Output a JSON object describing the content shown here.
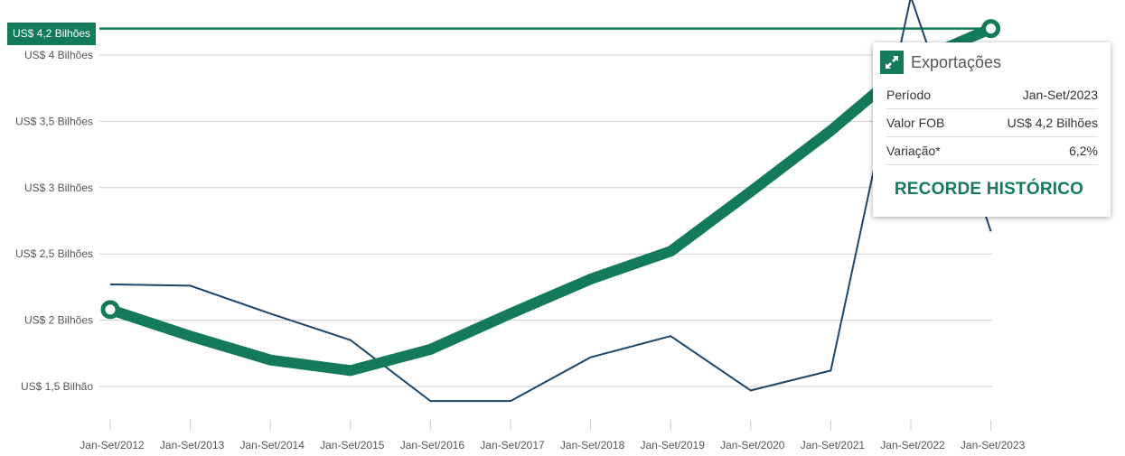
{
  "chart_data": {
    "type": "line",
    "title": "",
    "xlabel": "",
    "ylabel": "",
    "categories": [
      "Jan-Set/2012",
      "Jan-Set/2013",
      "Jan-Set/2014",
      "Jan-Set/2015",
      "Jan-Set/2016",
      "Jan-Set/2017",
      "Jan-Set/2018",
      "Jan-Set/2019",
      "Jan-Set/2020",
      "Jan-Set/2021",
      "Jan-Set/2022",
      "Jan-Set/2023"
    ],
    "yticks": [
      1.5,
      2,
      2.5,
      3,
      3.5,
      4
    ],
    "ytick_labels": [
      "US$ 1,5 Bilhão",
      "US$ 2 Bilhões",
      "US$ 2,5 Bilhões",
      "US$ 3 Bilhões",
      "US$ 3,5 Bilhões",
      "US$ 4 Bilhões"
    ],
    "ylim": [
      1.3,
      4.35
    ],
    "grid": true,
    "series": [
      {
        "name": "Exportações",
        "color": "#147a5c",
        "values": [
          2.08,
          1.88,
          1.7,
          1.62,
          1.78,
          2.05,
          2.31,
          2.52,
          2.97,
          3.43,
          3.94,
          4.2
        ]
      },
      {
        "color": "#1c456a",
        "values": [
          2.27,
          2.26,
          2.05,
          1.85,
          1.39,
          1.39,
          1.72,
          1.88,
          1.47,
          1.62,
          4.44,
          2.67
        ]
      }
    ],
    "reference_line": {
      "value": 4.2,
      "label": "US$ 4,2 Bilhões",
      "color": "#147a5c"
    }
  },
  "tooltip": {
    "title": "Exportações",
    "icon": "expand-arrows-icon",
    "rows": [
      {
        "label": "Período",
        "value": "Jan-Set/2023"
      },
      {
        "label": "Valor FOB",
        "value": "US$ 4,2 Bilhões"
      },
      {
        "label": "Variação*",
        "value": "6,2%"
      }
    ],
    "badge": "RECORDE HISTÓRICO"
  }
}
